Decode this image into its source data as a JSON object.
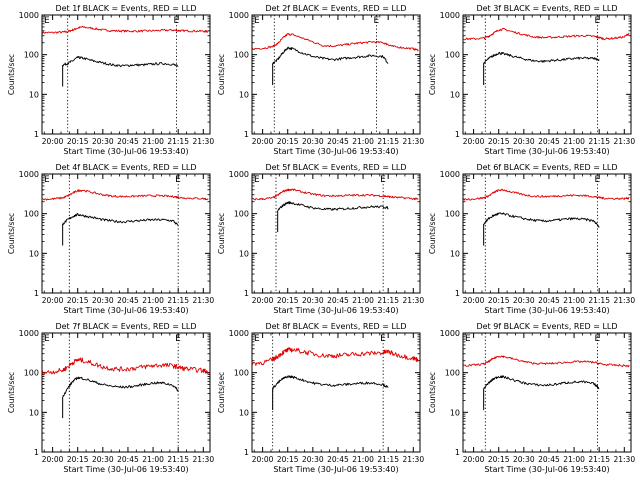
{
  "figure": {
    "ylabel": "Counts/sec",
    "xlabel": "Start Time (30-Jul-06 19:53:40)",
    "marker_left": "E",
    "marker_right": "E",
    "colors": {
      "events": "#000000",
      "lld": "#e00000",
      "axes": "#000000"
    }
  },
  "chart_data": [
    {
      "type": "line",
      "title": "Det 1f BLACK = Events, RED = LLD",
      "ylabel": "Counts/sec",
      "xlabel": "Start Time (30-Jul-06 19:53:40)",
      "yscale": "log",
      "ylim": [
        1,
        1000
      ],
      "xlim": [
        "19:53:40",
        "21:34:00"
      ],
      "x_ticks": [
        "20:00",
        "20:15",
        "20:30",
        "20:45",
        "21:00",
        "21:15",
        "21:30"
      ],
      "y_ticks": [
        "1",
        "10",
        "100",
        "1000"
      ],
      "vlines": [
        "20:09",
        "21:14"
      ],
      "x": [
        "19:54",
        "20:00",
        "20:06",
        "20:09",
        "20:12",
        "20:15",
        "20:18",
        "20:24",
        "20:30",
        "20:36",
        "20:42",
        "20:48",
        "20:54",
        "21:00",
        "21:06",
        "21:12",
        "21:15",
        "21:18",
        "21:24",
        "21:30",
        "21:33"
      ],
      "series": [
        {
          "name": "LLD",
          "color": "#e00000",
          "values": [
            360,
            360,
            370,
            380,
            420,
            470,
            500,
            460,
            420,
            400,
            395,
            390,
            395,
            400,
            410,
            415,
            405,
            400,
            395,
            390,
            380
          ]
        },
        {
          "name": "Events",
          "color": "#000000",
          "values": [
            null,
            null,
            55,
            60,
            70,
            85,
            82,
            70,
            62,
            55,
            52,
            55,
            55,
            58,
            60,
            57,
            50,
            null,
            null,
            null,
            null
          ]
        }
      ]
    },
    {
      "type": "line",
      "title": "Det 2f BLACK = Events, RED = LLD",
      "ylabel": "Counts/sec",
      "xlabel": "Start Time (30-Jul-06 19:53:40)",
      "yscale": "log",
      "ylim": [
        1,
        1000
      ],
      "xlim": [
        "19:53:40",
        "21:34:00"
      ],
      "x_ticks": [
        "20:00",
        "20:15",
        "20:30",
        "20:45",
        "21:00",
        "21:15",
        "21:30"
      ],
      "y_ticks": [
        "1",
        "10",
        "100",
        "1000"
      ],
      "vlines": [
        "20:07",
        "21:08"
      ],
      "x": [
        "19:54",
        "20:00",
        "20:06",
        "20:09",
        "20:12",
        "20:15",
        "20:18",
        "20:24",
        "20:30",
        "20:36",
        "20:42",
        "20:48",
        "20:54",
        "21:00",
        "21:06",
        "21:12",
        "21:15",
        "21:18",
        "21:24",
        "21:30",
        "21:33"
      ],
      "series": [
        {
          "name": "LLD",
          "color": "#e00000",
          "values": [
            140,
            145,
            160,
            190,
            260,
            330,
            320,
            260,
            210,
            170,
            165,
            175,
            190,
            200,
            210,
            200,
            180,
            160,
            150,
            140,
            130
          ]
        },
        {
          "name": "Events",
          "color": "#000000",
          "values": [
            null,
            null,
            60,
            75,
            110,
            150,
            140,
            110,
            90,
            80,
            75,
            80,
            85,
            90,
            95,
            90,
            60,
            null,
            null,
            null,
            null
          ]
        }
      ]
    },
    {
      "type": "line",
      "title": "Det 3f BLACK = Events, RED = LLD",
      "ylabel": "Counts/sec",
      "xlabel": "Start Time (30-Jul-06 19:53:40)",
      "yscale": "log",
      "ylim": [
        1,
        1000
      ],
      "xlim": [
        "19:53:40",
        "21:34:00"
      ],
      "x_ticks": [
        "20:00",
        "20:15",
        "20:30",
        "20:45",
        "21:00",
        "21:15",
        "21:30"
      ],
      "y_ticks": [
        "1",
        "10",
        "100",
        "1000"
      ],
      "vlines": [
        "20:07",
        "21:14"
      ],
      "x": [
        "19:54",
        "20:00",
        "20:06",
        "20:09",
        "20:12",
        "20:15",
        "20:18",
        "20:24",
        "20:30",
        "20:36",
        "20:42",
        "20:48",
        "20:54",
        "21:00",
        "21:06",
        "21:12",
        "21:15",
        "21:18",
        "21:24",
        "21:30",
        "21:33"
      ],
      "series": [
        {
          "name": "LLD",
          "color": "#e00000",
          "values": [
            250,
            250,
            260,
            290,
            350,
            420,
            440,
            370,
            320,
            280,
            270,
            275,
            285,
            295,
            300,
            290,
            270,
            250,
            260,
            280,
            350
          ]
        },
        {
          "name": "Events",
          "color": "#000000",
          "values": [
            null,
            null,
            60,
            80,
            95,
            110,
            105,
            90,
            78,
            70,
            68,
            72,
            75,
            80,
            82,
            80,
            75,
            null,
            null,
            null,
            null
          ]
        }
      ]
    },
    {
      "type": "line",
      "title": "Det 4f BLACK = Events, RED = LLD",
      "ylabel": "Counts/sec",
      "xlabel": "Start Time (30-Jul-06 19:53:40)",
      "yscale": "log",
      "ylim": [
        1,
        1000
      ],
      "xlim": [
        "19:53:40",
        "21:34:00"
      ],
      "x_ticks": [
        "20:00",
        "20:15",
        "20:30",
        "20:45",
        "21:00",
        "21:15",
        "21:30"
      ],
      "y_ticks": [
        "1",
        "10",
        "100",
        "1000"
      ],
      "vlines": [
        "20:10",
        "21:15"
      ],
      "x": [
        "19:54",
        "20:00",
        "20:06",
        "20:09",
        "20:12",
        "20:15",
        "20:18",
        "20:24",
        "20:30",
        "20:36",
        "20:42",
        "20:48",
        "20:54",
        "21:00",
        "21:06",
        "21:12",
        "21:15",
        "21:18",
        "21:24",
        "21:30",
        "21:33"
      ],
      "series": [
        {
          "name": "LLD",
          "color": "#e00000",
          "values": [
            230,
            235,
            250,
            280,
            330,
            380,
            390,
            340,
            300,
            275,
            270,
            275,
            280,
            285,
            280,
            270,
            260,
            250,
            245,
            240,
            230
          ]
        },
        {
          "name": "Events",
          "color": "#000000",
          "values": [
            null,
            null,
            55,
            70,
            85,
            95,
            90,
            80,
            70,
            65,
            62,
            65,
            68,
            70,
            70,
            66,
            50,
            null,
            null,
            null,
            null
          ]
        }
      ]
    },
    {
      "type": "line",
      "title": "Det 5f BLACK = Events, RED = LLD",
      "ylabel": "Counts/sec",
      "xlabel": "Start Time (30-Jul-06 19:53:40)",
      "yscale": "log",
      "ylim": [
        1,
        1000
      ],
      "xlim": [
        "19:53:40",
        "21:34:00"
      ],
      "x_ticks": [
        "20:00",
        "20:15",
        "20:30",
        "20:45",
        "21:00",
        "21:15",
        "21:30"
      ],
      "y_ticks": [
        "1",
        "10",
        "100",
        "1000"
      ],
      "vlines": [
        "20:08",
        "21:12"
      ],
      "x": [
        "19:54",
        "20:00",
        "20:06",
        "20:09",
        "20:12",
        "20:15",
        "20:18",
        "20:24",
        "20:30",
        "20:36",
        "20:42",
        "20:48",
        "20:54",
        "21:00",
        "21:06",
        "21:12",
        "21:15",
        "21:18",
        "21:24",
        "21:30",
        "21:33"
      ],
      "series": [
        {
          "name": "LLD",
          "color": "#e00000",
          "values": [
            230,
            235,
            250,
            290,
            360,
            400,
            405,
            350,
            310,
            285,
            280,
            285,
            290,
            295,
            290,
            280,
            270,
            260,
            250,
            240,
            230
          ]
        },
        {
          "name": "Events",
          "color": "#000000",
          "values": [
            null,
            null,
            null,
            120,
            160,
            190,
            185,
            160,
            140,
            130,
            128,
            132,
            138,
            145,
            150,
            148,
            140,
            null,
            null,
            null,
            null
          ]
        }
      ]
    },
    {
      "type": "line",
      "title": "Det 6f BLACK = Events, RED = LLD",
      "ylabel": "Counts/sec",
      "xlabel": "Start Time (30-Jul-06 19:53:40)",
      "yscale": "log",
      "ylim": [
        1,
        1000
      ],
      "xlim": [
        "19:53:40",
        "21:34:00"
      ],
      "x_ticks": [
        "20:00",
        "20:15",
        "20:30",
        "20:45",
        "21:00",
        "21:15",
        "21:30"
      ],
      "y_ticks": [
        "1",
        "10",
        "100",
        "1000"
      ],
      "vlines": [
        "20:07",
        "21:14"
      ],
      "x": [
        "19:54",
        "20:00",
        "20:06",
        "20:09",
        "20:12",
        "20:15",
        "20:18",
        "20:24",
        "20:30",
        "20:36",
        "20:42",
        "20:48",
        "20:54",
        "21:00",
        "21:06",
        "21:12",
        "21:15",
        "21:18",
        "21:24",
        "21:30",
        "21:33"
      ],
      "series": [
        {
          "name": "LLD",
          "color": "#e00000",
          "values": [
            230,
            235,
            250,
            280,
            340,
            390,
            395,
            340,
            300,
            275,
            270,
            275,
            285,
            290,
            285,
            270,
            255,
            245,
            240,
            240,
            250
          ]
        },
        {
          "name": "Events",
          "color": "#000000",
          "values": [
            null,
            null,
            55,
            75,
            90,
            100,
            98,
            85,
            75,
            68,
            65,
            68,
            72,
            75,
            72,
            65,
            45,
            null,
            null,
            null,
            null
          ]
        }
      ]
    },
    {
      "type": "line",
      "title": "Det 7f BLACK = Events, RED = LLD",
      "ylabel": "Counts/sec",
      "xlabel": "Start Time (30-Jul-06 19:53:40)",
      "yscale": "log",
      "ylim": [
        1,
        1000
      ],
      "xlim": [
        "19:53:40",
        "21:34:00"
      ],
      "x_ticks": [
        "20:00",
        "20:15",
        "20:30",
        "20:45",
        "21:00",
        "21:15",
        "21:30"
      ],
      "y_ticks": [
        "1",
        "10",
        "100",
        "1000"
      ],
      "vlines": [
        "20:10",
        "21:15"
      ],
      "x": [
        "19:54",
        "20:00",
        "20:06",
        "20:09",
        "20:12",
        "20:15",
        "20:18",
        "20:24",
        "20:30",
        "20:36",
        "20:42",
        "20:48",
        "20:54",
        "21:00",
        "21:06",
        "21:12",
        "21:15",
        "21:18",
        "21:24",
        "21:30",
        "21:33"
      ],
      "series": [
        {
          "name": "LLD",
          "color": "#e00000",
          "values": [
            100,
            105,
            115,
            140,
            180,
            210,
            205,
            170,
            140,
            125,
            122,
            128,
            140,
            150,
            155,
            148,
            138,
            128,
            120,
            112,
            105
          ]
        },
        {
          "name": "Events",
          "color": "#000000",
          "values": [
            null,
            null,
            25,
            40,
            60,
            75,
            72,
            60,
            50,
            45,
            43,
            45,
            50,
            55,
            55,
            48,
            35,
            null,
            null,
            null,
            null
          ]
        }
      ]
    },
    {
      "type": "line",
      "title": "Det 8f BLACK = Events, RED = LLD",
      "ylabel": "Counts/sec",
      "xlabel": "Start Time (30-Jul-06 19:53:40)",
      "yscale": "log",
      "ylim": [
        1,
        1000
      ],
      "xlim": [
        "19:53:40",
        "21:34:00"
      ],
      "x_ticks": [
        "20:00",
        "20:15",
        "20:30",
        "20:45",
        "21:00",
        "21:15",
        "21:30"
      ],
      "y_ticks": [
        "1",
        "10",
        "100",
        "1000"
      ],
      "vlines": [
        "20:06",
        "21:12"
      ],
      "x": [
        "19:54",
        "20:00",
        "20:06",
        "20:09",
        "20:12",
        "20:15",
        "20:18",
        "20:24",
        "20:30",
        "20:36",
        "20:42",
        "20:48",
        "20:54",
        "21:00",
        "21:06",
        "21:12",
        "21:15",
        "21:18",
        "21:24",
        "21:30",
        "21:33"
      ],
      "series": [
        {
          "name": "LLD",
          "color": "#e00000",
          "values": [
            170,
            180,
            210,
            260,
            320,
            370,
            380,
            340,
            300,
            270,
            265,
            275,
            290,
            300,
            310,
            320,
            340,
            300,
            260,
            230,
            210
          ]
        },
        {
          "name": "Events",
          "color": "#000000",
          "values": [
            null,
            null,
            40,
            55,
            70,
            80,
            78,
            65,
            55,
            50,
            48,
            50,
            52,
            55,
            55,
            50,
            42,
            null,
            null,
            null,
            null
          ]
        }
      ]
    },
    {
      "type": "line",
      "title": "Det 9f BLACK = Events, RED = LLD",
      "ylabel": "Counts/sec",
      "xlabel": "Start Time (30-Jul-06 19:53:40)",
      "yscale": "log",
      "ylim": [
        1,
        1000
      ],
      "xlim": [
        "19:53:40",
        "21:34:00"
      ],
      "x_ticks": [
        "20:00",
        "20:15",
        "20:30",
        "20:45",
        "21:00",
        "21:15",
        "21:30"
      ],
      "y_ticks": [
        "1",
        "10",
        "100",
        "1000"
      ],
      "vlines": [
        "20:07",
        "21:14"
      ],
      "x": [
        "19:54",
        "20:00",
        "20:06",
        "20:09",
        "20:12",
        "20:15",
        "20:18",
        "20:24",
        "20:30",
        "20:36",
        "20:42",
        "20:48",
        "20:54",
        "21:00",
        "21:06",
        "21:12",
        "21:15",
        "21:18",
        "21:24",
        "21:30",
        "21:33"
      ],
      "series": [
        {
          "name": "LLD",
          "color": "#e00000",
          "values": [
            150,
            155,
            165,
            190,
            230,
            260,
            255,
            220,
            190,
            172,
            168,
            172,
            180,
            188,
            190,
            182,
            170,
            160,
            155,
            150,
            145
          ]
        },
        {
          "name": "Events",
          "color": "#000000",
          "values": [
            null,
            null,
            40,
            55,
            70,
            80,
            78,
            65,
            55,
            50,
            48,
            50,
            55,
            58,
            58,
            52,
            40,
            null,
            null,
            null,
            null
          ]
        }
      ]
    }
  ]
}
